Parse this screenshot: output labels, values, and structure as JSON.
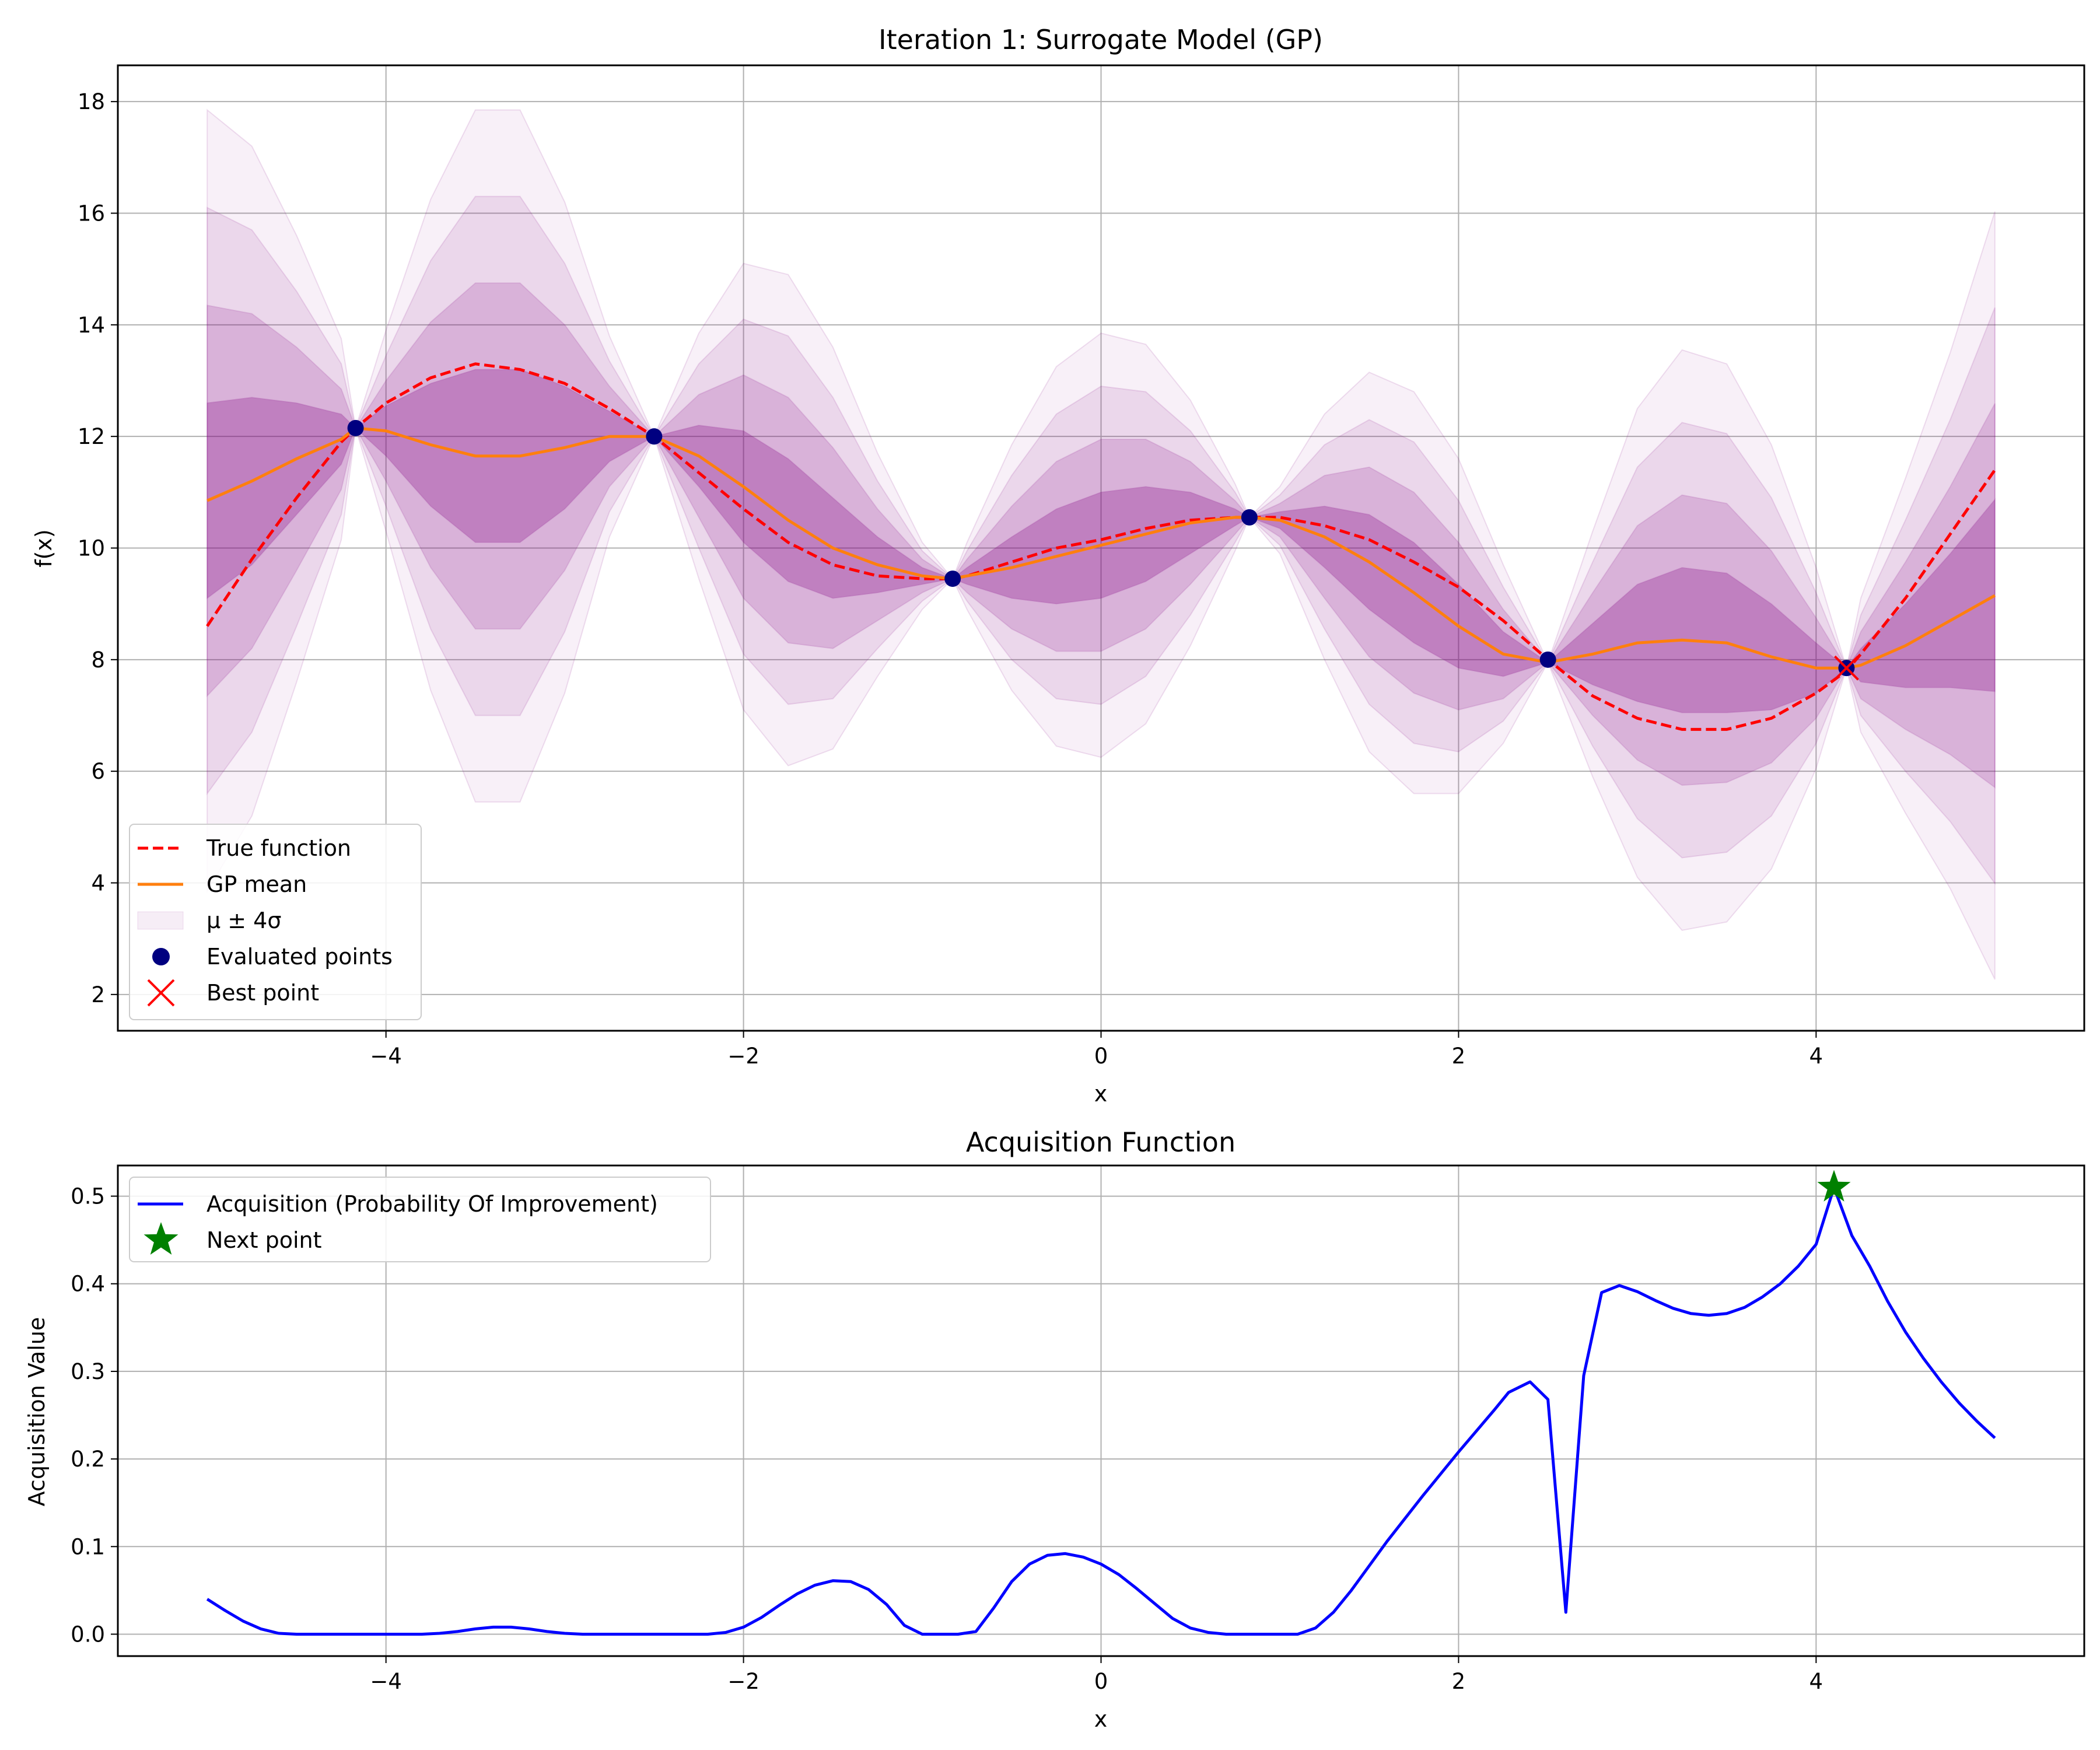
{
  "chart_data": [
    {
      "type": "line",
      "title": "Iteration 1: Surrogate Model (GP)",
      "xlabel": "x",
      "ylabel": "f(x)",
      "xlim": [
        -5.5,
        5.5
      ],
      "ylim": [
        1.35,
        18.65
      ],
      "xticks": [
        -4,
        -2,
        0,
        2,
        4
      ],
      "yticks": [
        2,
        4,
        6,
        8,
        10,
        12,
        14,
        16,
        18
      ],
      "xtick_labels": [
        "−4",
        "−2",
        "0",
        "2",
        "4"
      ],
      "ytick_labels": [
        "2",
        "4",
        "6",
        "8",
        "10",
        "12",
        "14",
        "16",
        "18"
      ],
      "grid": true,
      "legend_position": "lower-left",
      "x": [
        -5.0,
        -4.75,
        -4.5,
        -4.25,
        -4.17,
        -4.0,
        -3.75,
        -3.5,
        -3.25,
        -3.0,
        -2.75,
        -2.5,
        -2.25,
        -2.0,
        -1.75,
        -1.5,
        -1.25,
        -1.0,
        -0.83,
        -0.75,
        -0.5,
        -0.25,
        0.0,
        0.25,
        0.5,
        0.75,
        0.83,
        1.0,
        1.25,
        1.5,
        1.75,
        2.0,
        2.25,
        2.5,
        2.75,
        3.0,
        3.25,
        3.5,
        3.75,
        4.0,
        4.17,
        4.25,
        4.5,
        4.75,
        5.0
      ],
      "series": [
        {
          "name": "True function",
          "color": "#ff0000",
          "style": "dashed",
          "values": [
            8.6,
            9.8,
            10.9,
            11.9,
            12.15,
            12.6,
            13.05,
            13.3,
            13.2,
            12.95,
            12.5,
            12.0,
            11.35,
            10.7,
            10.1,
            9.7,
            9.5,
            9.45,
            9.45,
            9.5,
            9.75,
            10.0,
            10.15,
            10.35,
            10.5,
            10.55,
            10.55,
            10.55,
            10.4,
            10.15,
            9.75,
            9.3,
            8.7,
            8.0,
            7.35,
            6.95,
            6.75,
            6.75,
            6.95,
            7.4,
            7.8,
            8.1,
            9.1,
            10.25,
            11.4
          ]
        },
        {
          "name": "GP mean",
          "color": "#ff7f0e",
          "style": "solid",
          "values": [
            10.85,
            11.2,
            11.6,
            11.95,
            12.15,
            12.1,
            11.85,
            11.65,
            11.65,
            11.8,
            12.0,
            12.0,
            11.65,
            11.1,
            10.5,
            10.0,
            9.7,
            9.5,
            9.45,
            9.5,
            9.65,
            9.85,
            10.05,
            10.25,
            10.45,
            10.55,
            10.55,
            10.5,
            10.2,
            9.75,
            9.2,
            8.6,
            8.1,
            7.95,
            8.1,
            8.3,
            8.35,
            8.3,
            8.05,
            7.85,
            7.85,
            7.9,
            8.25,
            8.7,
            9.15
          ]
        }
      ],
      "sigma": [
        1.75,
        1.5,
        1.0,
        0.45,
        0.0,
        0.45,
        1.1,
        1.55,
        1.55,
        1.1,
        0.45,
        0.0,
        0.55,
        1.0,
        1.1,
        0.9,
        0.5,
        0.15,
        0.0,
        0.15,
        0.55,
        0.85,
        0.95,
        0.85,
        0.55,
        0.15,
        0.0,
        0.15,
        0.55,
        0.85,
        0.9,
        0.75,
        0.4,
        0.0,
        0.55,
        1.05,
        1.3,
        1.25,
        0.95,
        0.45,
        0.0,
        0.3,
        0.75,
        1.2,
        1.72
      ],
      "confidence_bands": {
        "name": "μ ± 4σ",
        "multipliers": [
          1,
          2,
          3,
          4
        ],
        "color": "#800080",
        "opacity": [
          0.28,
          0.17,
          0.1,
          0.06
        ]
      },
      "evaluated_points": {
        "name": "Evaluated points",
        "color": "#000080",
        "x": [
          -4.17,
          -2.5,
          -0.83,
          0.83,
          2.5,
          4.17
        ],
        "y": [
          12.15,
          12.0,
          9.45,
          10.55,
          8.0,
          7.85
        ]
      },
      "best_point": {
        "name": "Best point",
        "color": "#ff0000",
        "x": 4.17,
        "y": 7.85
      }
    },
    {
      "type": "line",
      "title": "Acquisition Function",
      "xlabel": "x",
      "ylabel": "Acquisition Value",
      "xlim": [
        -5.5,
        5.5
      ],
      "ylim": [
        -0.025,
        0.535
      ],
      "xticks": [
        -4,
        -2,
        0,
        2,
        4
      ],
      "yticks": [
        0.0,
        0.1,
        0.2,
        0.3,
        0.4,
        0.5
      ],
      "xtick_labels": [
        "−4",
        "−2",
        "0",
        "2",
        "4"
      ],
      "ytick_labels": [
        "0.0",
        "0.1",
        "0.2",
        "0.3",
        "0.4",
        "0.5"
      ],
      "grid": true,
      "legend_position": "top-left",
      "series": [
        {
          "name": "Acquisition (Probability Of Improvement)",
          "color": "#0000ff",
          "x": [
            -5.0,
            -4.9,
            -4.8,
            -4.7,
            -4.6,
            -4.5,
            -4.4,
            -4.2,
            -4.0,
            -3.8,
            -3.7,
            -3.6,
            -3.5,
            -3.4,
            -3.3,
            -3.2,
            -3.1,
            -3.0,
            -2.9,
            -2.8,
            -2.6,
            -2.4,
            -2.2,
            -2.1,
            -2.0,
            -1.9,
            -1.8,
            -1.7,
            -1.6,
            -1.5,
            -1.4,
            -1.3,
            -1.2,
            -1.1,
            -1.0,
            -0.9,
            -0.8,
            -0.7,
            -0.6,
            -0.5,
            -0.4,
            -0.3,
            -0.2,
            -0.1,
            0.0,
            0.1,
            0.2,
            0.3,
            0.4,
            0.5,
            0.6,
            0.7,
            0.8,
            0.9,
            1.0,
            1.1,
            1.2,
            1.3,
            1.4,
            1.5,
            1.6,
            1.7,
            1.8,
            1.9,
            2.0,
            2.1,
            2.2,
            2.28,
            2.4,
            2.5,
            2.6,
            2.7,
            2.8,
            2.9,
            3.0,
            3.1,
            3.2,
            3.3,
            3.4,
            3.5,
            3.6,
            3.7,
            3.8,
            3.9,
            4.0,
            4.1,
            4.2,
            4.3,
            4.4,
            4.5,
            4.6,
            4.7,
            4.8,
            4.9,
            5.0
          ],
          "values": [
            0.04,
            0.027,
            0.015,
            0.006,
            0.001,
            0.0,
            0.0,
            0.0,
            0.0,
            0.0,
            0.001,
            0.003,
            0.006,
            0.008,
            0.008,
            0.006,
            0.003,
            0.001,
            0.0,
            0.0,
            0.0,
            0.0,
            0.0,
            0.002,
            0.008,
            0.019,
            0.033,
            0.046,
            0.056,
            0.061,
            0.06,
            0.051,
            0.034,
            0.01,
            0.0,
            0.0,
            0.0,
            0.003,
            0.03,
            0.06,
            0.08,
            0.09,
            0.092,
            0.088,
            0.08,
            0.068,
            0.052,
            0.035,
            0.018,
            0.007,
            0.002,
            0.0,
            0.0,
            0.0,
            0.0,
            0.0,
            0.007,
            0.025,
            0.05,
            0.078,
            0.106,
            0.132,
            0.158,
            0.183,
            0.208,
            0.232,
            0.256,
            0.276,
            0.288,
            0.268,
            0.025,
            0.295,
            0.39,
            0.398,
            0.391,
            0.381,
            0.372,
            0.366,
            0.364,
            0.366,
            0.373,
            0.385,
            0.4,
            0.42,
            0.445,
            0.51,
            0.455,
            0.42,
            0.38,
            0.345,
            0.315,
            0.288,
            0.264,
            0.243,
            0.224
          ]
        }
      ],
      "next_point": {
        "name": "Next point",
        "color": "#008000",
        "x": 4.1,
        "y": 0.51
      }
    }
  ]
}
